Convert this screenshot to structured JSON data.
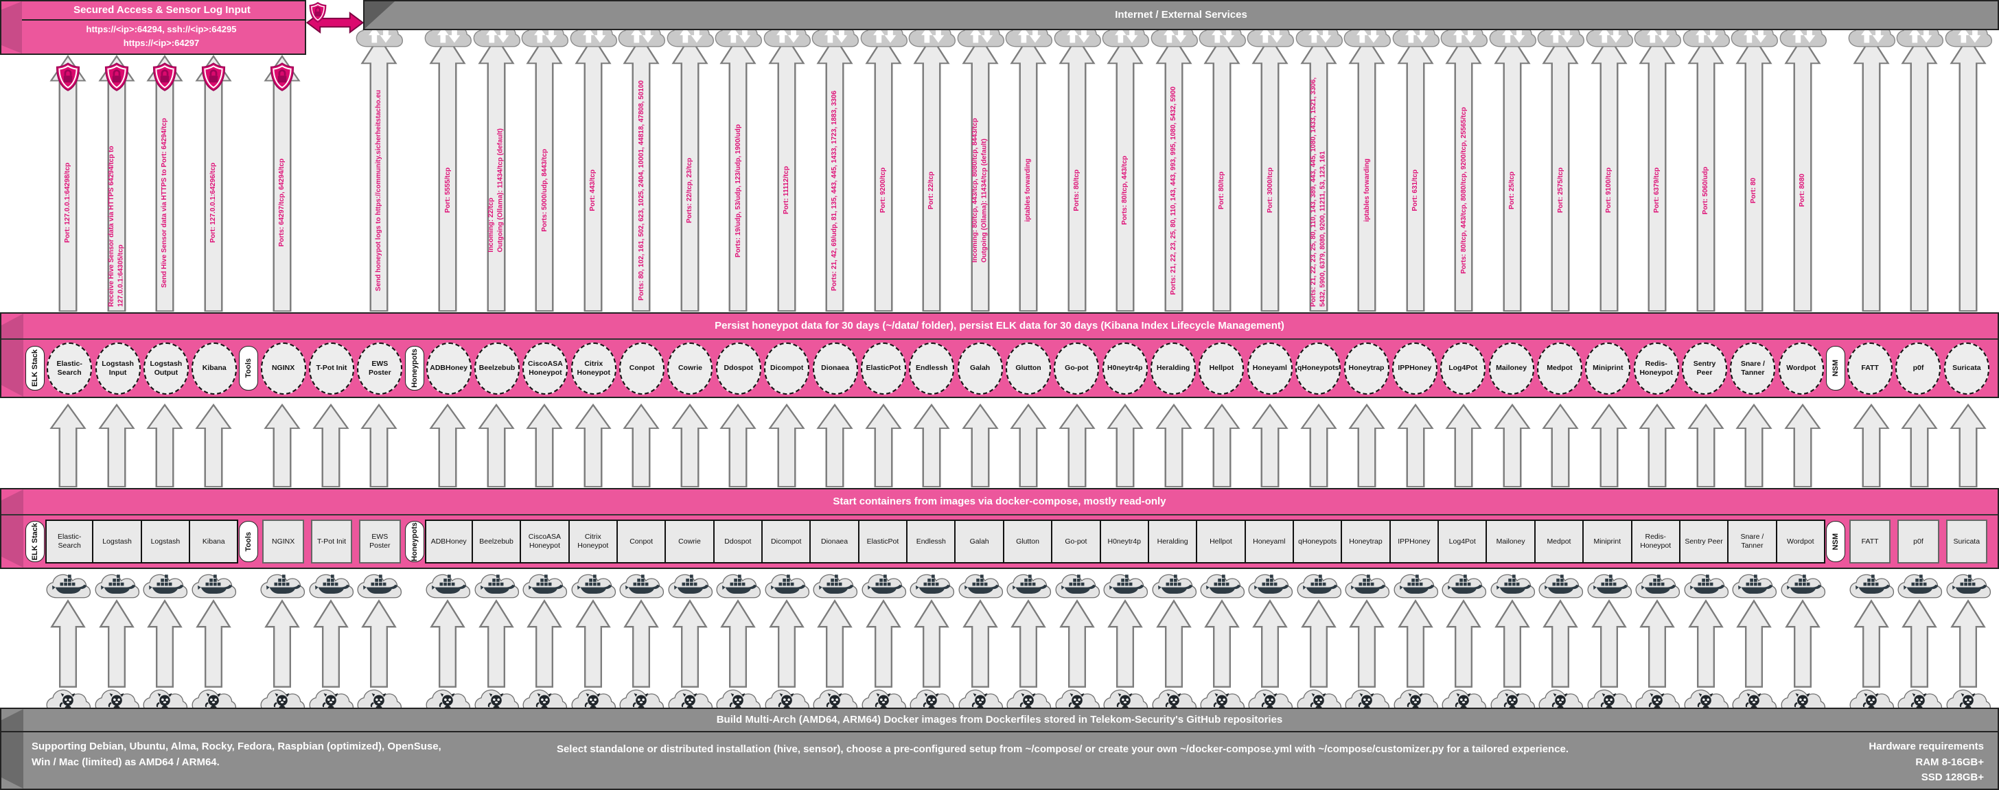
{
  "colors": {
    "pink": "#EC579C",
    "pink_bevel": "#C94B88",
    "magenta_text": "#DE1177",
    "gray_bar": "#8E8E8E",
    "arrow_fill": "#EBEBEB",
    "node_fill": "#EDEDED",
    "shield": "#DB0A6E"
  },
  "icons": [
    "shield-lock-icon",
    "double-arrow-icon",
    "cloud-updown-icon",
    "docker-cloud-icon",
    "github-cloud-icon"
  ],
  "secured_access": {
    "title": "Secured Access & Sensor Log Input",
    "line1": "https://<ip>:64294, ssh://<ip>:64295",
    "line2": "https://<ip>:64297"
  },
  "bars": {
    "internet": "Internet / External Services",
    "persist": "Persist honeypot data for 30 days (~/data/ folder), persist ELK data for 30 days (Kibana Index Lifecycle Management)",
    "start": "Start containers from images via docker-compose, mostly read-only",
    "build": "Build Multi-Arch (AMD64, ARM64) Docker images from Dockerfiles stored in Telekom-Security's GitHub repositories"
  },
  "footer": {
    "left": "Supporting Debian, Ubuntu, Alma, Rocky, Fedora, Raspbian (optimized), OpenSuse, Win / Mac (limited) as AMD64 / ARM64.",
    "center": "Select standalone or distributed installation (hive, sensor), choose a pre-configured setup from ~/compose/ or create your own ~/docker-compose.yml with ~/compose/customizer.py for a tailored experience.",
    "right_title": "Hardware requirements",
    "right_ram": "RAM 8-16GB+",
    "right_ssd": "SSD 128GB+"
  },
  "groups": [
    {
      "label": "ELK Stack",
      "joined": true,
      "services": [
        {
          "name": "Elastic-Search",
          "circle": "Elastic-Search",
          "box": "Elastic-Search",
          "arrow": {
            "type": "shield",
            "label": "Port: 127.0.0.1:64298/tcp",
            "cloud": false
          }
        },
        {
          "name": "Logstash Input",
          "circle": "Logstash Input",
          "box": "Logstash",
          "arrow": {
            "type": "shield",
            "label": "Receive Hive Sensor data via HTTPS 64294/tcp to 127.0.0.1:64305/tcp",
            "cloud": false
          }
        },
        {
          "name": "Logstash Output",
          "circle": "Logstash Output",
          "box": "Logstash",
          "arrow": {
            "type": "shield",
            "label": "Send Hive Sensor data via HTTPS to Port: 64294/tcp",
            "cloud": false
          }
        },
        {
          "name": "Kibana",
          "circle": "Kibana",
          "box": "Kibana",
          "arrow": {
            "type": "shield",
            "label": "Port: 127.0.0.1:64296/tcp",
            "cloud": false
          }
        }
      ]
    },
    {
      "label": "Tools",
      "joined": false,
      "services": [
        {
          "name": "NGINX",
          "circle": "NGINX",
          "box": "NGINX",
          "arrow": {
            "type": "shield",
            "label": "Ports: 64297/tcp, 64294/tcp",
            "cloud": false
          }
        },
        {
          "name": "T-Pot Init",
          "circle": "T-Pot Init",
          "box": "T-Pot Init",
          "arrow": {
            "type": "none",
            "label": "",
            "cloud": false
          }
        },
        {
          "name": "EWS Poster",
          "circle": "EWS Poster",
          "box": "EWS Poster",
          "arrow": {
            "type": "text",
            "label": "Send honeypot logs to https://community.sicherheitstacho.eu",
            "cloud": true
          }
        }
      ]
    },
    {
      "label": "Honeypots",
      "joined": true,
      "services": [
        {
          "name": "ADBHoney",
          "circle": "ADBHoney",
          "box": "ADBHoney",
          "arrow": {
            "type": "text",
            "label": "Port: 5555/tcp",
            "cloud": true
          }
        },
        {
          "name": "Beelzebub",
          "circle": "Beelzebub",
          "box": "Beelzebub",
          "arrow": {
            "type": "text",
            "label": "Incoming: 22/tcp\nOutgoing (Ollama): 11434/tcp (default)",
            "cloud": true
          }
        },
        {
          "name": "CiscoASA Honeypot",
          "circle": "CiscoASA Honeypot",
          "box": "CiscoASA Honeypot",
          "arrow": {
            "type": "text",
            "label": "Ports: 5000/udp, 8443/tcp",
            "cloud": true
          }
        },
        {
          "name": "Citrix Honeypot",
          "circle": "Citrix Honeypot",
          "box": "Citrix Honeypot",
          "arrow": {
            "type": "text",
            "label": "Port: 443/tcp",
            "cloud": true
          }
        },
        {
          "name": "Conpot",
          "circle": "Conpot",
          "box": "Conpot",
          "arrow": {
            "type": "text",
            "label": "Ports: 80, 102, 161, 502, 623, 1025, 2404, 10001, 44818, 47808, 50100",
            "cloud": true
          }
        },
        {
          "name": "Cowrie",
          "circle": "Cowrie",
          "box": "Cowrie",
          "arrow": {
            "type": "text",
            "label": "Ports: 22/tcp, 23/tcp",
            "cloud": true
          }
        },
        {
          "name": "Ddospot",
          "circle": "Ddospot",
          "box": "Ddospot",
          "arrow": {
            "type": "text",
            "label": "Ports: 19/udp, 53/udp, 123/udp, 1900/udp",
            "cloud": true
          }
        },
        {
          "name": "Dicompot",
          "circle": "Dicompot",
          "box": "Dicompot",
          "arrow": {
            "type": "text",
            "label": "Port: 11112/tcp",
            "cloud": true
          }
        },
        {
          "name": "Dionaea",
          "circle": "Dionaea",
          "box": "Dionaea",
          "arrow": {
            "type": "text",
            "label": "Ports: 21, 42, 69/udp, 81, 135, 443, 445, 1433, 1723, 1883, 3306",
            "cloud": true
          }
        },
        {
          "name": "ElasticPot",
          "circle": "ElasticPot",
          "box": "ElasticPot",
          "arrow": {
            "type": "text",
            "label": "Port: 9200/tcp",
            "cloud": true
          }
        },
        {
          "name": "Endlessh",
          "circle": "Endlessh",
          "box": "Endlessh",
          "arrow": {
            "type": "text",
            "label": "Port: 22/tcp",
            "cloud": true
          }
        },
        {
          "name": "Galah",
          "circle": "Galah",
          "box": "Galah",
          "arrow": {
            "type": "text",
            "label": "Incoming: 80/tcp, 443/tcp, 8080/tcp, 8443/tcp\nOutgoing (Ollama): 11434/tcp (default)",
            "cloud": true
          }
        },
        {
          "name": "Glutton",
          "circle": "Glutton",
          "box": "Glutton",
          "arrow": {
            "type": "text",
            "label": "iptables forwarding",
            "cloud": true
          }
        },
        {
          "name": "Go-pot",
          "circle": "Go-pot",
          "box": "Go-pot",
          "arrow": {
            "type": "text",
            "label": "Ports: 80/tcp",
            "cloud": true
          }
        },
        {
          "name": "H0neytr4p",
          "circle": "H0neytr4p",
          "box": "H0neytr4p",
          "arrow": {
            "type": "text",
            "label": "Ports: 80/tcp, 443/tcp",
            "cloud": true
          }
        },
        {
          "name": "Heralding",
          "circle": "Heralding",
          "box": "Heralding",
          "arrow": {
            "type": "text",
            "label": "Ports: 21, 22, 23, 25, 80, 110, 143, 443, 993, 995, 1080, 5432, 5900",
            "cloud": true
          }
        },
        {
          "name": "Hellpot",
          "circle": "Hellpot",
          "box": "Hellpot",
          "arrow": {
            "type": "text",
            "label": "Port: 80/tcp",
            "cloud": true
          }
        },
        {
          "name": "Honeyaml",
          "circle": "Honeyaml",
          "box": "Honeyaml",
          "arrow": {
            "type": "text",
            "label": "Port: 3000/tcp",
            "cloud": true
          }
        },
        {
          "name": "qHoneypots",
          "circle": "qHoneypots",
          "box": "qHoneypots",
          "arrow": {
            "type": "text",
            "label": "Ports: 21, 22, 23, 25, 80, 110, 143, 389, 443, 445, 1080, 1433, 1521, 3306, 5432, 5900, 6379, 8080, 9200, 11211, 53, 123, 161",
            "cloud": true
          }
        },
        {
          "name": "Honeytrap",
          "circle": "Honeytrap",
          "box": "Honeytrap",
          "arrow": {
            "type": "text",
            "label": "iptables forwarding",
            "cloud": true
          }
        },
        {
          "name": "IPPHoney",
          "circle": "IPPHoney",
          "box": "IPPHoney",
          "arrow": {
            "type": "text",
            "label": "Port: 631/tcp",
            "cloud": true
          }
        },
        {
          "name": "Log4Pot",
          "circle": "Log4Pot",
          "box": "Log4Pot",
          "arrow": {
            "type": "text",
            "label": "Ports: 80/tcp, 443/tcp, 8080/tcp, 9200/tcp, 25565/tcp",
            "cloud": true
          }
        },
        {
          "name": "Mailoney",
          "circle": "Mailoney",
          "box": "Mailoney",
          "arrow": {
            "type": "text",
            "label": "Port: 25/tcp",
            "cloud": true
          }
        },
        {
          "name": "Medpot",
          "circle": "Medpot",
          "box": "Medpot",
          "arrow": {
            "type": "text",
            "label": "Port: 2575/tcp",
            "cloud": true
          }
        },
        {
          "name": "Miniprint",
          "circle": "Miniprint",
          "box": "Miniprint",
          "arrow": {
            "type": "text",
            "label": "Port: 9100/tcp",
            "cloud": true
          }
        },
        {
          "name": "Redis-Honeypot",
          "circle": "Redis-Honeypot",
          "box": "Redis-Honeypot",
          "arrow": {
            "type": "text",
            "label": "Port: 6379/tcp",
            "cloud": true
          }
        },
        {
          "name": "Sentry Peer",
          "circle": "Sentry Peer",
          "box": "Sentry Peer",
          "arrow": {
            "type": "text",
            "label": "Port: 5060/udp",
            "cloud": true
          }
        },
        {
          "name": "Snare / Tanner",
          "circle": "Snare / Tanner",
          "box": "Snare / Tanner",
          "arrow": {
            "type": "text",
            "label": "Port: 80",
            "cloud": true
          }
        },
        {
          "name": "Wordpot",
          "circle": "Wordpot",
          "box": "Wordpot",
          "arrow": {
            "type": "text",
            "label": "Port: 8080",
            "cloud": true
          }
        }
      ]
    },
    {
      "label": "NSM",
      "joined": false,
      "services": [
        {
          "name": "FATT",
          "circle": "FATT",
          "box": "FATT",
          "arrow": {
            "type": "plain",
            "label": "",
            "cloud": true
          }
        },
        {
          "name": "p0f",
          "circle": "p0f",
          "box": "p0f",
          "arrow": {
            "type": "plain",
            "label": "",
            "cloud": true
          }
        },
        {
          "name": "Suricata",
          "circle": "Suricata",
          "box": "Suricata",
          "arrow": {
            "type": "plain",
            "label": "",
            "cloud": true
          }
        }
      ]
    }
  ]
}
